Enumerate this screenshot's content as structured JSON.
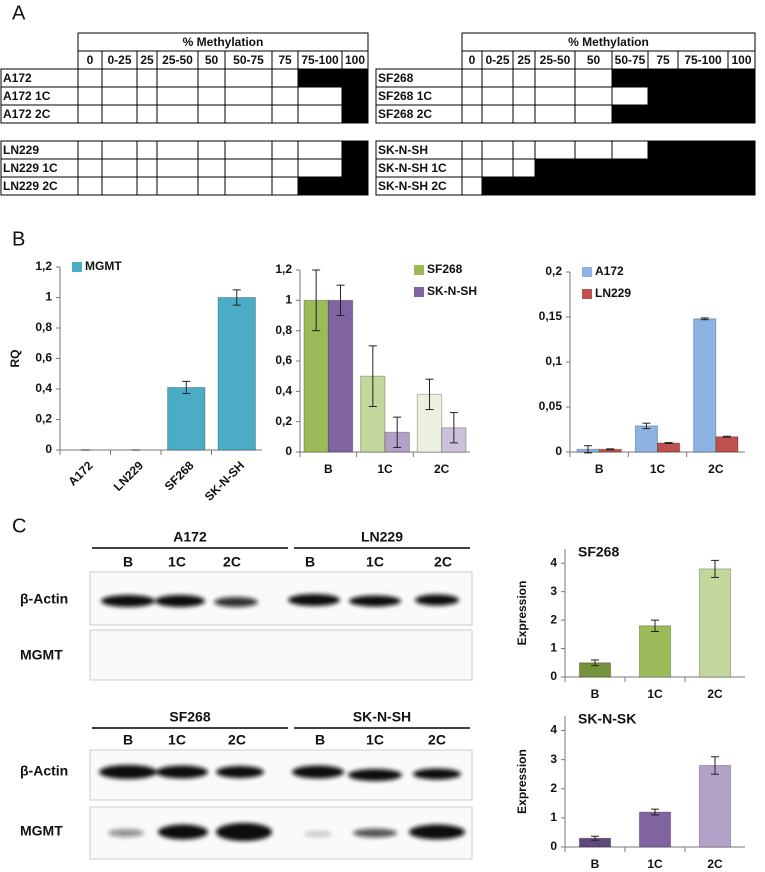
{
  "panel_labels": [
    "A",
    "B",
    "C"
  ],
  "methylation_tables": [
    {
      "header": "% Methylation",
      "columns": [
        "0",
        "0-25",
        "25",
        "25-50",
        "50",
        "50-75",
        "75",
        "75-100",
        "100"
      ],
      "rows": [
        {
          "name": "A172",
          "methylated": [
            false,
            false,
            false,
            false,
            false,
            false,
            false,
            true,
            true
          ]
        },
        {
          "name": "A172 1C",
          "methylated": [
            false,
            false,
            false,
            false,
            false,
            false,
            false,
            false,
            true
          ]
        },
        {
          "name": "A172 2C",
          "methylated": [
            false,
            false,
            false,
            false,
            false,
            false,
            false,
            false,
            true
          ]
        },
        {
          "name": "LN229",
          "methylated": [
            false,
            false,
            false,
            false,
            false,
            false,
            false,
            false,
            true
          ]
        },
        {
          "name": "LN229 1C",
          "methylated": [
            false,
            false,
            false,
            false,
            false,
            false,
            false,
            false,
            true
          ]
        },
        {
          "name": "LN229 2C",
          "methylated": [
            false,
            false,
            false,
            false,
            false,
            false,
            false,
            true,
            true
          ]
        }
      ]
    },
    {
      "header": "% Methylation",
      "columns": [
        "0",
        "0-25",
        "25",
        "25-50",
        "50",
        "50-75",
        "75",
        "75-100",
        "100"
      ],
      "rows": [
        {
          "name": "SF268",
          "methylated": [
            false,
            false,
            false,
            false,
            false,
            true,
            true,
            true,
            true
          ]
        },
        {
          "name": "SF268 1C",
          "methylated": [
            false,
            false,
            false,
            false,
            false,
            false,
            true,
            true,
            true
          ]
        },
        {
          "name": "SF268 2C",
          "methylated": [
            false,
            false,
            false,
            false,
            false,
            true,
            true,
            true,
            true
          ]
        },
        {
          "name": "SK-N-SH",
          "methylated": [
            false,
            false,
            false,
            false,
            false,
            false,
            true,
            true,
            true
          ]
        },
        {
          "name": "SK-N-SH 1C",
          "methylated": [
            false,
            false,
            false,
            true,
            true,
            true,
            true,
            true,
            true
          ]
        },
        {
          "name": "SK-N-SH 2C",
          "methylated": [
            false,
            true,
            true,
            true,
            true,
            true,
            true,
            true,
            true
          ]
        }
      ]
    }
  ],
  "chart_data": [
    {
      "type": "bar",
      "y_label": "RQ",
      "categories": [
        "A172",
        "LN229",
        "SF268",
        "SK-N-SH"
      ],
      "series": [
        {
          "name": "MGMT",
          "color": "#4bacc6",
          "values": [
            0,
            0,
            0.41,
            1
          ],
          "errors": [
            0,
            0,
            0.04,
            0.05
          ]
        }
      ],
      "ylim": [
        0,
        1.2
      ],
      "yticks": [
        0,
        {
          "value": 0.2,
          "label": "0,2"
        },
        {
          "value": 0.4,
          "label": "0,4"
        },
        {
          "value": 0.6,
          "label": "0,6"
        },
        {
          "value": 0.8,
          "label": "0,8"
        },
        1,
        {
          "value": 1.2,
          "label": "1,2"
        }
      ],
      "legend": "top-left",
      "rotated_categories": true
    },
    {
      "type": "bar",
      "categories": [
        "B",
        "1C",
        "2C"
      ],
      "series": [
        {
          "name": "SF268",
          "color": "#9bbb59",
          "colors": [
            "#9bbb59",
            "#c3d69b",
            "#ebf1de"
          ],
          "values": [
            1,
            0.5,
            0.38
          ],
          "errors": [
            0.2,
            0.2,
            0.1
          ]
        },
        {
          "name": "SK-N-SH",
          "color": "#8064a2",
          "colors": [
            "#8064a2",
            "#b3a2c7",
            "#ccc1da"
          ],
          "values": [
            1,
            0.13,
            0.16
          ],
          "errors": [
            0.1,
            0.1,
            0.1
          ]
        }
      ],
      "ylim": [
        0,
        1.2
      ],
      "yticks": [
        0,
        {
          "value": 0.2,
          "label": "0,2"
        },
        {
          "value": 0.4,
          "label": "0,4"
        },
        {
          "value": 0.6,
          "label": "0,6"
        },
        {
          "value": 0.8,
          "label": "0,8"
        },
        1,
        {
          "value": 1.2,
          "label": "1,2"
        }
      ],
      "legend": "top-right"
    },
    {
      "type": "bar",
      "categories": [
        "B",
        "1C",
        "2C"
      ],
      "series": [
        {
          "name": "A172",
          "color": "#8db3e2",
          "values": [
            0.003,
            0.029,
            0.148
          ],
          "errors": [
            0.004,
            0.003,
            0.001
          ]
        },
        {
          "name": "LN229",
          "color": "#c0504d",
          "values": [
            0.003,
            0.01,
            0.017
          ],
          "errors": [
            0.0005,
            0.0005,
            0.0005
          ]
        }
      ],
      "ylim": [
        0,
        0.2
      ],
      "yticks": [
        0,
        {
          "value": 0.05,
          "label": "0,05"
        },
        {
          "value": 0.1,
          "label": "0,1"
        },
        {
          "value": 0.15,
          "label": "0,15"
        },
        {
          "value": 0.2,
          "label": "0,2"
        }
      ],
      "legend": "top-left"
    },
    {
      "type": "bar",
      "title": "SF268",
      "y_label": "Expression",
      "categories": [
        "B",
        "1C",
        "2C"
      ],
      "values": [
        0.5,
        1.8,
        3.8
      ],
      "errors": [
        0.1,
        0.2,
        0.3
      ],
      "colors": [
        "#76923c",
        "#9bbb59",
        "#c3d69b"
      ],
      "ylim": [
        0,
        4.5
      ],
      "yticks": [
        0,
        1,
        2,
        3,
        4
      ]
    },
    {
      "type": "bar",
      "title": "SK-N-SK",
      "y_label": "Expression",
      "categories": [
        "B",
        "1C",
        "2C"
      ],
      "values": [
        0.3,
        1.2,
        2.8
      ],
      "errors": [
        0.07,
        0.1,
        0.3
      ],
      "colors": [
        "#5f497a",
        "#8064a2",
        "#b3a2c7"
      ],
      "ylim": [
        0,
        4.5
      ],
      "yticks": [
        0,
        1,
        2,
        3,
        4
      ]
    }
  ],
  "blots": [
    {
      "groups": [
        {
          "name": "A172",
          "lanes": [
            "B",
            "1C",
            "2C"
          ]
        },
        {
          "name": "LN229",
          "lanes": [
            "B",
            "1C",
            "2C"
          ]
        }
      ],
      "rows": [
        "β-Actin",
        "MGMT"
      ]
    },
    {
      "groups": [
        {
          "name": "SF268",
          "lanes": [
            "B",
            "1C",
            "2C"
          ]
        },
        {
          "name": "SK-N-SH",
          "lanes": [
            "B",
            "1C",
            "2C"
          ]
        }
      ],
      "rows": [
        "β-Actin",
        "MGMT"
      ]
    }
  ]
}
